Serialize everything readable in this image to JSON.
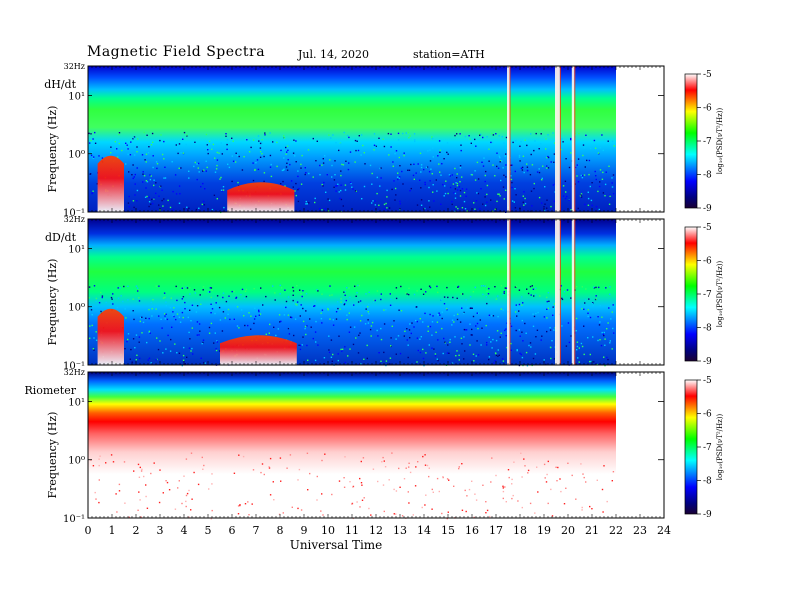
{
  "header": {
    "title": "Magnetic  Field  Spectra",
    "date": "Jul.  14,  2020",
    "station": "station=ATH"
  },
  "colors": {
    "colormap": [
      "#1a0033",
      "#000080",
      "#0000ff",
      "#0080ff",
      "#00ffff",
      "#00ff80",
      "#00ff00",
      "#80ff00",
      "#ffff00",
      "#ff8000",
      "#ff0000",
      "#ffffff"
    ],
    "frame": "#000000",
    "background": "#ffffff"
  },
  "chart_data": [
    {
      "type": "heatmap",
      "panel_label": "dH/dt",
      "ylabel": "Frequency  (Hz)",
      "y_top_label": "32Hz",
      "y_tick_labels": [
        "10¹",
        "10⁰",
        "10⁻¹"
      ],
      "y_scale": "log",
      "ylim": [
        0.1,
        32
      ],
      "xlim": [
        0,
        24
      ],
      "data_extent_hours": [
        0,
        22
      ],
      "colorbar": {
        "label": "log₁₀(PSD(νT²/Hz))",
        "ticks": [
          "-5",
          "-6",
          "-7",
          "-8",
          "-9"
        ],
        "range": [
          -9,
          -5
        ]
      },
      "features": {
        "lowfreq_bursts_hours": [
          [
            0.4,
            1.5
          ],
          [
            5.8,
            8.6
          ]
        ],
        "spikes_hours": [
          17.5,
          19.5,
          19.6,
          20.2
        ]
      }
    },
    {
      "type": "heatmap",
      "panel_label": "dD/dt",
      "ylabel": "Frequency  (Hz)",
      "y_top_label": "32Hz",
      "y_tick_labels": [
        "10¹",
        "10⁰",
        "10⁻¹"
      ],
      "y_scale": "log",
      "ylim": [
        0.1,
        32
      ],
      "xlim": [
        0,
        24
      ],
      "data_extent_hours": [
        0,
        22
      ],
      "colorbar": {
        "label": "log₁₀(PSD(νT²/Hz))",
        "ticks": [
          "-5",
          "-6",
          "-7",
          "-8",
          "-9"
        ],
        "range": [
          -9,
          -5
        ]
      },
      "features": {
        "lowfreq_bursts_hours": [
          [
            0.4,
            1.5
          ],
          [
            5.5,
            8.7
          ]
        ],
        "spikes_hours": [
          17.5,
          19.5,
          19.6,
          20.2
        ]
      }
    },
    {
      "type": "heatmap",
      "panel_label": "Riometer",
      "ylabel": "Frequency  (Hz)",
      "y_top_label": "32Hz",
      "y_tick_labels": [
        "10¹",
        "10⁰",
        "10⁻¹"
      ],
      "y_scale": "log",
      "ylim": [
        0.1,
        32
      ],
      "xlim": [
        0,
        24
      ],
      "data_extent_hours": [
        0,
        22
      ],
      "colorbar": {
        "label": "log₁₀(PSD(νT²/Hz))",
        "ticks": [
          "-5",
          "-6",
          "-7",
          "-8",
          "-9"
        ],
        "range": [
          -9,
          -5
        ]
      },
      "features": {
        "lowfreq_bursts_hours": [],
        "spikes_hours": []
      }
    }
  ],
  "x_axis": {
    "label": "Universal Time",
    "ticks": [
      "0",
      "1",
      "2",
      "3",
      "4",
      "5",
      "6",
      "7",
      "8",
      "9",
      "10",
      "11",
      "12",
      "13",
      "14",
      "15",
      "16",
      "17",
      "18",
      "19",
      "20",
      "21",
      "22",
      "23",
      "24"
    ]
  }
}
